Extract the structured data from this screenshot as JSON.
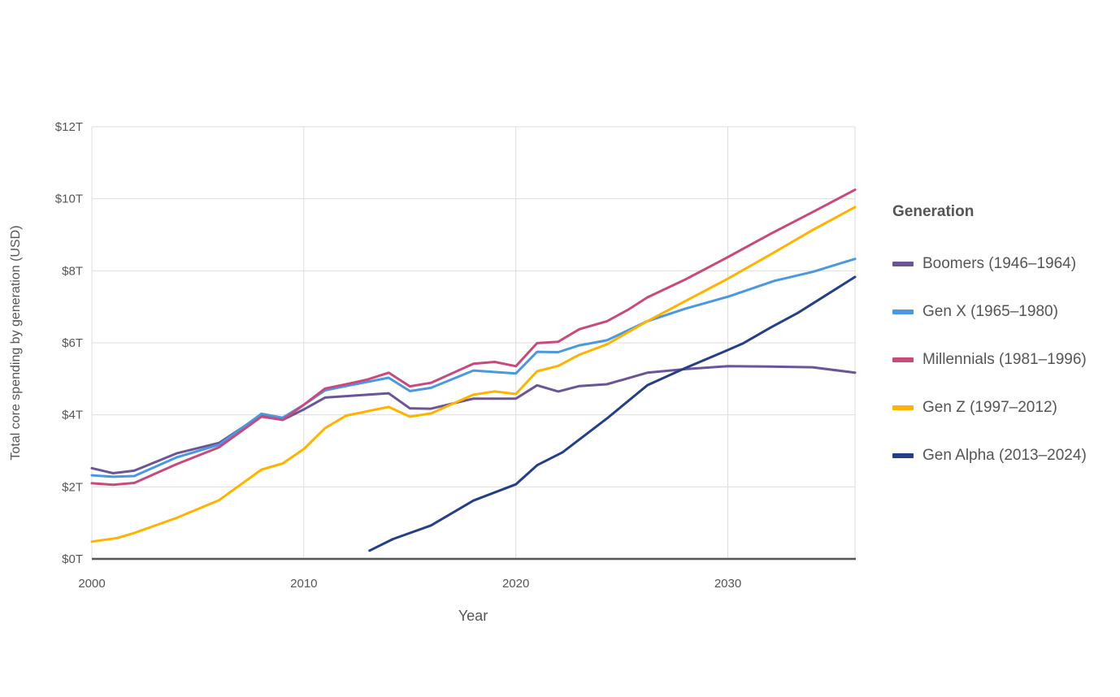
{
  "chart_data": {
    "type": "line",
    "xlabel": "Year",
    "ylabel": "Total core spending by generation (USD)",
    "xlim": [
      2000,
      2036
    ],
    "ylim": [
      0,
      12
    ],
    "x_ticks": [
      2000,
      2010,
      2020,
      2030
    ],
    "y_ticks": [
      {
        "value": 0,
        "label": "$0T"
      },
      {
        "value": 2,
        "label": "$2T"
      },
      {
        "value": 4,
        "label": "$4T"
      },
      {
        "value": 6,
        "label": "$6T"
      },
      {
        "value": 8,
        "label": "$8T"
      },
      {
        "value": 10,
        "label": "$10T"
      },
      {
        "value": 12,
        "label": "$12T"
      }
    ],
    "grid": true,
    "legend_title": "Generation",
    "legend_position": "right",
    "series": [
      {
        "name": "Boomers (1946–1964)",
        "color": "#6b5596",
        "points": [
          [
            2000,
            2.52
          ],
          [
            2001,
            2.38
          ],
          [
            2002,
            2.45
          ],
          [
            2004,
            2.93
          ],
          [
            2006,
            3.22
          ],
          [
            2008,
            4.0
          ],
          [
            2009,
            3.86
          ],
          [
            2010,
            4.15
          ],
          [
            2011,
            4.48
          ],
          [
            2012,
            4.52
          ],
          [
            2014,
            4.6
          ],
          [
            2015,
            4.18
          ],
          [
            2016,
            4.17
          ],
          [
            2018,
            4.45
          ],
          [
            2019,
            4.45
          ],
          [
            2020,
            4.45
          ],
          [
            2021,
            4.82
          ],
          [
            2022,
            4.65
          ],
          [
            2023,
            4.8
          ],
          [
            2024.3,
            4.85
          ],
          [
            2026.2,
            5.17
          ],
          [
            2028,
            5.27
          ],
          [
            2030,
            5.35
          ],
          [
            2032,
            5.34
          ],
          [
            2034,
            5.32
          ],
          [
            2036,
            5.17
          ]
        ]
      },
      {
        "name": "Gen X (1965–1980)",
        "color": "#4a98e0",
        "points": [
          [
            2000,
            2.32
          ],
          [
            2001,
            2.28
          ],
          [
            2002,
            2.3
          ],
          [
            2004,
            2.82
          ],
          [
            2006,
            3.17
          ],
          [
            2008,
            4.03
          ],
          [
            2009,
            3.92
          ],
          [
            2010,
            4.28
          ],
          [
            2011,
            4.68
          ],
          [
            2012,
            4.8
          ],
          [
            2014,
            5.03
          ],
          [
            2015,
            4.66
          ],
          [
            2016,
            4.75
          ],
          [
            2018,
            5.23
          ],
          [
            2020,
            5.15
          ],
          [
            2021,
            5.75
          ],
          [
            2022,
            5.74
          ],
          [
            2023,
            5.93
          ],
          [
            2024.3,
            6.07
          ],
          [
            2026.2,
            6.6
          ],
          [
            2028,
            6.95
          ],
          [
            2030,
            7.28
          ],
          [
            2032.2,
            7.72
          ],
          [
            2034,
            7.97
          ],
          [
            2036,
            8.33
          ]
        ]
      },
      {
        "name": "Millennials (1981–1996)",
        "color": "#c84a7d",
        "points": [
          [
            2000,
            2.1
          ],
          [
            2001,
            2.06
          ],
          [
            2002,
            2.11
          ],
          [
            2004,
            2.63
          ],
          [
            2006,
            3.1
          ],
          [
            2008,
            3.95
          ],
          [
            2009,
            3.86
          ],
          [
            2010,
            4.28
          ],
          [
            2011,
            4.73
          ],
          [
            2012,
            4.85
          ],
          [
            2013,
            4.98
          ],
          [
            2014,
            5.17
          ],
          [
            2015,
            4.79
          ],
          [
            2016,
            4.89
          ],
          [
            2018,
            5.42
          ],
          [
            2019,
            5.47
          ],
          [
            2020,
            5.35
          ],
          [
            2021,
            5.99
          ],
          [
            2022,
            6.03
          ],
          [
            2023,
            6.38
          ],
          [
            2024.3,
            6.6
          ],
          [
            2025.3,
            6.92
          ],
          [
            2026.2,
            7.26
          ],
          [
            2028,
            7.76
          ],
          [
            2030,
            8.38
          ],
          [
            2032,
            9.02
          ],
          [
            2034,
            9.63
          ],
          [
            2036,
            10.25
          ]
        ]
      },
      {
        "name": "Gen Z (1997–2012)",
        "color": "#ffb300",
        "points": [
          [
            2000,
            0.48
          ],
          [
            2001.2,
            0.58
          ],
          [
            2002,
            0.72
          ],
          [
            2004,
            1.14
          ],
          [
            2006,
            1.63
          ],
          [
            2008,
            2.48
          ],
          [
            2009,
            2.65
          ],
          [
            2010,
            3.05
          ],
          [
            2011,
            3.63
          ],
          [
            2012,
            3.98
          ],
          [
            2014,
            4.22
          ],
          [
            2015,
            3.95
          ],
          [
            2016,
            4.04
          ],
          [
            2018,
            4.56
          ],
          [
            2019,
            4.65
          ],
          [
            2020,
            4.58
          ],
          [
            2021,
            5.21
          ],
          [
            2022,
            5.36
          ],
          [
            2023,
            5.67
          ],
          [
            2024.3,
            5.96
          ],
          [
            2026.2,
            6.6
          ],
          [
            2028,
            7.16
          ],
          [
            2030,
            7.78
          ],
          [
            2032,
            8.45
          ],
          [
            2034,
            9.13
          ],
          [
            2036,
            9.77
          ]
        ]
      },
      {
        "name": "Gen Alpha (2013–2024)",
        "color": "#243f85",
        "points": [
          [
            2013.1,
            0.23
          ],
          [
            2014.2,
            0.55
          ],
          [
            2016,
            0.93
          ],
          [
            2018,
            1.62
          ],
          [
            2020,
            2.07
          ],
          [
            2021,
            2.6
          ],
          [
            2022.2,
            2.96
          ],
          [
            2024.3,
            3.9
          ],
          [
            2026.2,
            4.82
          ],
          [
            2028,
            5.3
          ],
          [
            2030,
            5.8
          ],
          [
            2030.7,
            5.98
          ],
          [
            2032,
            6.42
          ],
          [
            2033.3,
            6.83
          ],
          [
            2036,
            7.83
          ]
        ]
      }
    ]
  }
}
